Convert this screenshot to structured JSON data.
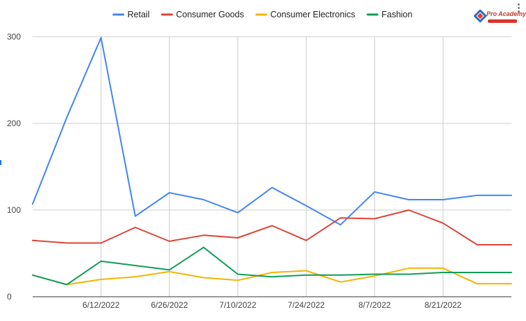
{
  "chart_data": {
    "type": "line",
    "title": "",
    "xlabel": "",
    "ylabel": "",
    "ylim": [
      0,
      300
    ],
    "yticks": [
      0,
      100,
      200,
      300
    ],
    "grid": true,
    "legend_position": "top",
    "x_tick_labels": [
      "6/12/2022",
      "6/26/2022",
      "7/10/2022",
      "7/24/2022",
      "8/7/2022",
      "8/21/2022"
    ],
    "x": [
      "5/29/2022",
      "6/5/2022",
      "6/12/2022",
      "6/19/2022",
      "6/26/2022",
      "7/3/2022",
      "7/10/2022",
      "7/17/2022",
      "7/24/2022",
      "7/31/2022",
      "8/7/2022",
      "8/14/2022",
      "8/21/2022",
      "8/28/2022",
      "9/4/2022"
    ],
    "series": [
      {
        "name": "Retail",
        "color": "#4285f4",
        "values": [
          107,
          207,
          299,
          93,
          120,
          112,
          97,
          126,
          105,
          83,
          121,
          112,
          112,
          117,
          117
        ]
      },
      {
        "name": "Consumer Goods",
        "color": "#db4437",
        "values": [
          65,
          62,
          62,
          80,
          64,
          71,
          68,
          82,
          65,
          91,
          90,
          100,
          85,
          60,
          60
        ]
      },
      {
        "name": "Consumer Electronics",
        "color": "#f4b400",
        "values": [
          25,
          14,
          20,
          23,
          29,
          22,
          19,
          28,
          30,
          17,
          24,
          33,
          33,
          15,
          15
        ]
      },
      {
        "name": "Fashion",
        "color": "#0f9d58",
        "values": [
          25,
          14,
          41,
          36,
          31,
          57,
          26,
          23,
          25,
          25,
          26,
          26,
          28,
          28,
          28
        ]
      }
    ]
  },
  "logo": {
    "text": "Pro Academy",
    "icon": "pro-academy-logo-icon"
  },
  "menu": {
    "icon": "more-vertical-icon"
  }
}
